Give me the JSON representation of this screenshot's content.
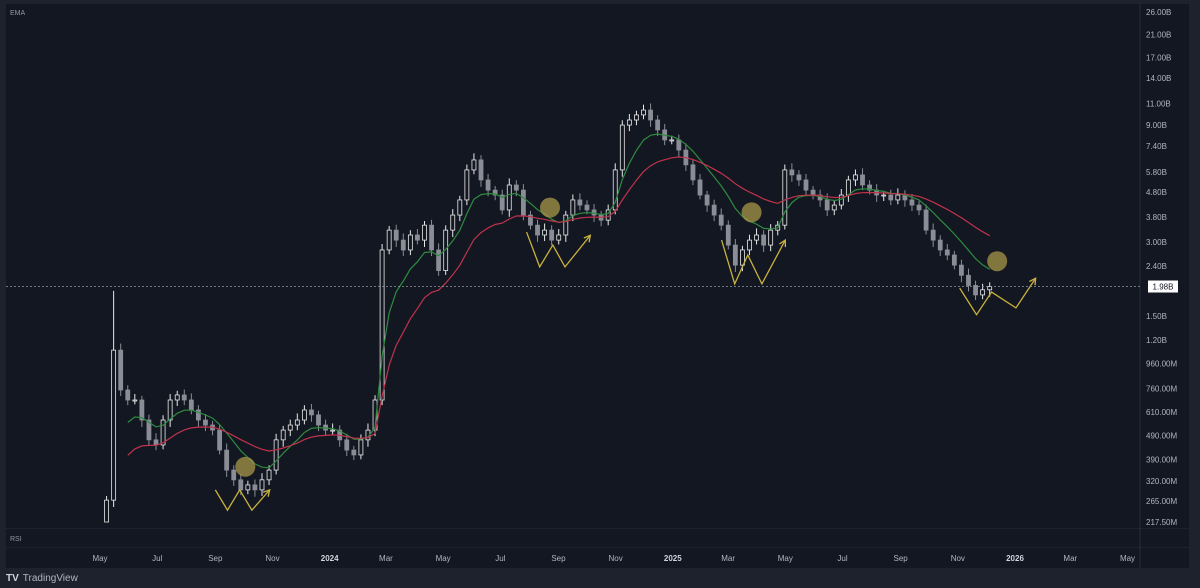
{
  "brand": "TradingView",
  "chart_data": {
    "type": "candlestick",
    "pane_labels": {
      "main": "EMA",
      "sub": "RSI"
    },
    "y_scale": "log",
    "ylim_millions": [
      217.5,
      26000
    ],
    "y_ticks": [
      "26.00B",
      "21.00B",
      "17.00B",
      "14.00B",
      "11.00B",
      "9.00B",
      "7.40B",
      "5.80B",
      "4.80B",
      "3.80B",
      "3.00B",
      "2.40B",
      "1.50B",
      "1.20B",
      "960.00M",
      "760.00M",
      "610.00M",
      "490.00M",
      "390.00M",
      "320.00M",
      "265.00M",
      "217.50M"
    ],
    "y_tick_values_millions": [
      26000,
      21000,
      17000,
      14000,
      11000,
      9000,
      7400,
      5800,
      4800,
      3800,
      3000,
      2400,
      1500,
      1200,
      960,
      760,
      610,
      490,
      390,
      320,
      265,
      217.5
    ],
    "x_ticks": [
      {
        "label": "May",
        "date": "2023-05-01"
      },
      {
        "label": "Jul",
        "date": "2023-07-01"
      },
      {
        "label": "Sep",
        "date": "2023-09-01"
      },
      {
        "label": "Nov",
        "date": "2023-11-01"
      },
      {
        "label": "2024",
        "date": "2024-01-01",
        "bold": true
      },
      {
        "label": "Mar",
        "date": "2024-03-01"
      },
      {
        "label": "May",
        "date": "2024-05-01"
      },
      {
        "label": "Jul",
        "date": "2024-07-01"
      },
      {
        "label": "Sep",
        "date": "2024-09-01"
      },
      {
        "label": "Nov",
        "date": "2024-11-01"
      },
      {
        "label": "2025",
        "date": "2025-01-01",
        "bold": true
      },
      {
        "label": "Mar",
        "date": "2025-03-01"
      },
      {
        "label": "May",
        "date": "2025-05-01"
      },
      {
        "label": "Jul",
        "date": "2025-07-01"
      },
      {
        "label": "Sep",
        "date": "2025-09-01"
      },
      {
        "label": "Nov",
        "date": "2025-11-01"
      },
      {
        "label": "2026",
        "date": "2026-01-01",
        "bold": true
      },
      {
        "label": "Mar",
        "date": "2026-03-01"
      },
      {
        "label": "May",
        "date": "2026-05-01"
      }
    ],
    "series_start": "2023-05-08",
    "series_end": "2025-12-05",
    "closes_millions": [
      267,
      1090,
      750,
      683,
      683,
      566,
      470,
      448,
      566,
      683,
      716,
      683,
      622,
      566,
      540,
      515,
      427,
      354,
      323,
      294,
      308,
      294,
      323,
      354,
      470,
      515,
      540,
      566,
      622,
      594,
      540,
      515,
      515,
      470,
      427,
      408,
      470,
      515,
      683,
      2790,
      3360,
      3060,
      2790,
      3210,
      3060,
      3520,
      2790,
      2300,
      3360,
      3870,
      4460,
      5910,
      6490,
      5380,
      4890,
      4670,
      4060,
      5130,
      4890,
      3870,
      3520,
      3210,
      3360,
      3060,
      3210,
      3870,
      4460,
      4250,
      4060,
      3870,
      3690,
      4060,
      5910,
      9000,
      9440,
      9900,
      10360,
      9440,
      8600,
      7830,
      7830,
      7120,
      6200,
      5380,
      4670,
      4250,
      3870,
      3520,
      2920,
      2420,
      2790,
      3060,
      3210,
      2920,
      3360,
      3520,
      5910,
      5640,
      5380,
      4890,
      4670,
      4460,
      4060,
      4250,
      4670,
      5380,
      5640,
      5130,
      4890,
      4670,
      4670,
      4460,
      4670,
      4460,
      4250,
      4060,
      3360,
      3060,
      2790,
      2660,
      2420,
      2200,
      2000,
      1830,
      1920,
      1980
    ],
    "first_low_millions": 217.5,
    "spike_high_millions": 1900,
    "last_price": {
      "label": "1.98B",
      "value_millions": 1980
    },
    "indicators": [
      {
        "type": "EMA",
        "color": "#2e8b3e"
      },
      {
        "type": "EMA",
        "color": "#c0334b"
      }
    ],
    "colors": {
      "background": "#131722",
      "up": "#e8e8e8",
      "down": "#8a8d96",
      "annotation_line": "#c9b23c",
      "annotation_circle": "#a8974a"
    },
    "annotations": {
      "circles": [
        {
          "date": "2023-10-03",
          "value_millions": 365
        },
        {
          "date": "2024-08-23",
          "value_millions": 4150
        },
        {
          "date": "2025-03-26",
          "value_millions": 3970
        },
        {
          "date": "2025-12-13",
          "value_millions": 2510
        }
      ],
      "w_patterns": [
        [
          [
            "2023-09-01",
            294
          ],
          [
            "2023-09-14",
            243
          ],
          [
            "2023-09-27",
            294
          ],
          [
            "2023-10-10",
            243
          ],
          [
            "2023-10-29",
            294
          ]
        ],
        [
          [
            "2024-07-29",
            3300
          ],
          [
            "2024-08-12",
            2380
          ],
          [
            "2024-08-26",
            2920
          ],
          [
            "2024-09-08",
            2380
          ],
          [
            "2024-10-05",
            3200
          ]
        ],
        [
          [
            "2025-02-22",
            3060
          ],
          [
            "2025-03-08",
            2030
          ],
          [
            "2025-03-22",
            2660
          ],
          [
            "2025-04-06",
            2030
          ],
          [
            "2025-05-01",
            3060
          ]
        ],
        [
          [
            "2025-11-03",
            1950
          ],
          [
            "2025-11-21",
            1520
          ],
          [
            "2025-12-07",
            1880
          ],
          [
            "2026-01-02",
            1620
          ],
          [
            "2026-01-23",
            2140
          ]
        ]
      ]
    }
  }
}
